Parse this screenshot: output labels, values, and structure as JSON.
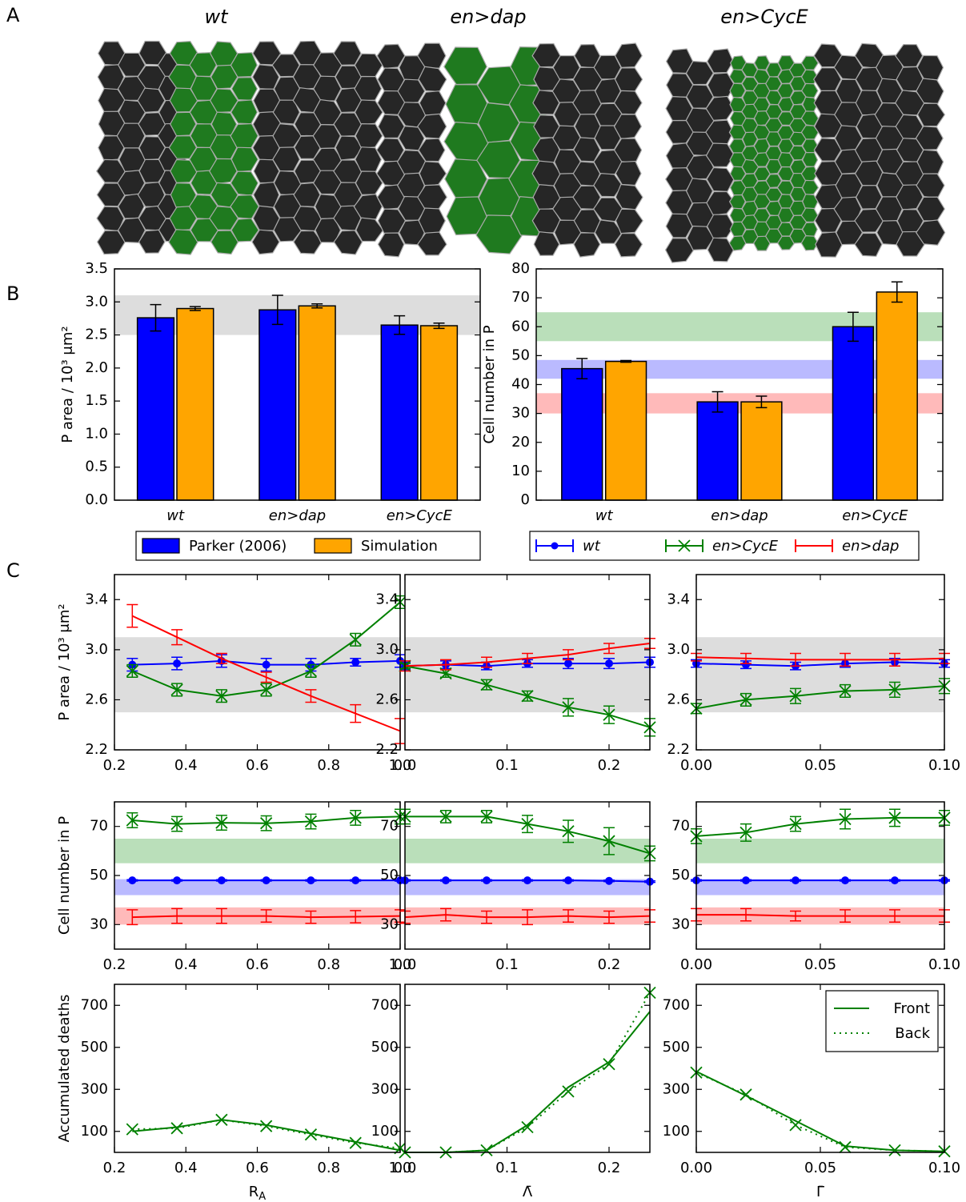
{
  "panel_labels": [
    "A",
    "B",
    "C"
  ],
  "tissue_titles": [
    "wt",
    "en>dap",
    "en>CycE"
  ],
  "chart_data": [
    {
      "type": "bar",
      "ylabel": "P area / 10³ μm²",
      "categories": [
        "wt",
        "en>dap",
        "en>CycE"
      ],
      "ylim": [
        0,
        3.5
      ],
      "yticks": [
        {
          "value": 0,
          "label": "0.0"
        },
        0.5,
        {
          "value": 1,
          "label": "1.0"
        },
        1.5,
        {
          "value": 2,
          "label": "2.0"
        },
        2.5,
        {
          "value": 3,
          "label": "3.0"
        },
        3.5
      ],
      "bands": [
        {
          "range": [
            2.5,
            3.1
          ],
          "color": "#d9d9d9"
        }
      ],
      "series": [
        {
          "name": "Parker (2006)",
          "color": "#0000ff",
          "values": [
            2.76,
            2.88,
            2.65
          ],
          "errors": [
            0.2,
            0.22,
            0.14
          ]
        },
        {
          "name": "Simulation",
          "color": "#ffa500",
          "values": [
            2.9,
            2.94,
            2.64
          ],
          "errors": [
            0.03,
            0.03,
            0.04
          ]
        }
      ]
    },
    {
      "type": "bar",
      "ylabel": "Cell number in P",
      "categories": [
        "wt",
        "en>dap",
        "en>CycE"
      ],
      "ylim": [
        0,
        80
      ],
      "yticks": [
        0,
        10,
        20,
        30,
        40,
        50,
        60,
        70,
        80
      ],
      "bands": [
        {
          "range": [
            55,
            65
          ],
          "color": "#b3dcb3"
        },
        {
          "range": [
            42,
            48.5
          ],
          "color": "#b3b3ff"
        },
        {
          "range": [
            30,
            37
          ],
          "color": "#ffb3b3"
        }
      ],
      "series": [
        {
          "color": "#0000ff",
          "values": [
            45.5,
            34,
            60
          ],
          "errors": [
            3.5,
            3.5,
            5
          ]
        },
        {
          "color": "#ffa500",
          "values": [
            48,
            34,
            72
          ],
          "errors": [
            0.3,
            2,
            3.5
          ]
        }
      ]
    },
    {
      "type": "line",
      "ylabel": "P area / 10³ μm²",
      "x": [
        0.25,
        0.375,
        0.5,
        0.625,
        0.75,
        0.875,
        1.0
      ],
      "xlim": [
        0.2,
        1.0
      ],
      "xticks": [
        0.2,
        0.4,
        0.6,
        0.8,
        {
          "value": 1,
          "label": "1.0"
        }
      ],
      "ylim": [
        2.2,
        3.6
      ],
      "yticks": [
        2.2,
        2.6,
        {
          "value": 3,
          "label": "3.0"
        },
        3.4
      ],
      "bands": [
        {
          "range": [
            2.5,
            3.1
          ],
          "color": "#d9d9d9"
        }
      ],
      "series": [
        {
          "name": "wt",
          "color": "#0000ff",
          "marker": "o",
          "values": [
            2.88,
            2.89,
            2.91,
            2.88,
            2.88,
            2.9,
            2.91
          ],
          "errors": [
            0.05,
            0.05,
            0.05,
            0.05,
            0.05,
            0.03,
            0.05
          ]
        },
        {
          "name": "en>CycE",
          "color": "#008000",
          "marker": "x",
          "values": [
            2.83,
            2.68,
            2.63,
            2.68,
            2.83,
            3.08,
            3.38
          ],
          "errors": [
            0.05,
            0.05,
            0.05,
            0.05,
            0.05,
            0.05,
            0.05
          ]
        },
        {
          "name": "en>dap",
          "color": "#ff0000",
          "values": [
            3.27,
            3.1,
            2.93,
            2.78,
            2.63,
            2.49,
            2.35
          ],
          "errors": [
            0.09,
            0.06,
            0.04,
            0.04,
            0.05,
            0.07,
            0.1
          ]
        }
      ]
    },
    {
      "type": "line",
      "x": [
        0,
        0.04,
        0.08,
        0.12,
        0.16,
        0.2,
        0.24
      ],
      "xlim": [
        0,
        0.24
      ],
      "xticks": [
        {
          "value": 0,
          "label": "0.0"
        },
        0.1,
        0.2
      ],
      "ylim": [
        2.2,
        3.6
      ],
      "yticks": [
        2.2,
        2.6,
        {
          "value": 3,
          "label": "3.0"
        },
        3.4
      ],
      "bands": [
        {
          "range": [
            2.5,
            3.1
          ],
          "color": "#d9d9d9"
        }
      ],
      "series": [
        {
          "color": "#0000ff",
          "marker": "o",
          "values": [
            2.87,
            2.88,
            2.87,
            2.89,
            2.89,
            2.89,
            2.9
          ],
          "errors": [
            0.03,
            0.03,
            0.03,
            0.03,
            0.04,
            0.04,
            0.04
          ]
        },
        {
          "color": "#008000",
          "marker": "x",
          "values": [
            2.87,
            2.81,
            2.72,
            2.63,
            2.54,
            2.48,
            2.38
          ],
          "errors": [
            0.02,
            0.03,
            0.04,
            0.04,
            0.07,
            0.07,
            0.07
          ]
        },
        {
          "color": "#ff0000",
          "values": [
            2.87,
            2.88,
            2.9,
            2.93,
            2.96,
            3.01,
            3.05
          ],
          "errors": [
            0.04,
            0.04,
            0.04,
            0.04,
            0.04,
            0.04,
            0.04
          ]
        }
      ]
    },
    {
      "type": "line",
      "x": [
        0,
        0.02,
        0.04,
        0.06,
        0.08,
        0.1
      ],
      "xlim": [
        0,
        0.1
      ],
      "xticks": [
        {
          "value": 0,
          "label": "0.00"
        },
        0.05,
        {
          "value": 0.1,
          "label": "0.10"
        }
      ],
      "ylim": [
        2.2,
        3.6
      ],
      "yticks": [
        2.2,
        2.6,
        {
          "value": 3,
          "label": "3.0"
        },
        3.4
      ],
      "bands": [
        {
          "range": [
            2.5,
            3.1
          ],
          "color": "#d9d9d9"
        }
      ],
      "series": [
        {
          "color": "#0000ff",
          "marker": "o",
          "values": [
            2.89,
            2.88,
            2.87,
            2.89,
            2.9,
            2.89
          ],
          "errors": [
            0.03,
            0.03,
            0.03,
            0.03,
            0.03,
            0.03
          ]
        },
        {
          "color": "#008000",
          "marker": "x",
          "values": [
            2.53,
            2.6,
            2.63,
            2.67,
            2.68,
            2.71
          ],
          "errors": [
            0.04,
            0.05,
            0.06,
            0.05,
            0.06,
            0.06
          ]
        },
        {
          "color": "#ff0000",
          "values": [
            2.94,
            2.93,
            2.92,
            2.92,
            2.92,
            2.93
          ],
          "errors": [
            0.03,
            0.04,
            0.05,
            0.05,
            0.05,
            0.04
          ]
        }
      ]
    },
    {
      "type": "line",
      "ylabel": "Cell number in P",
      "x": [
        0.25,
        0.375,
        0.5,
        0.625,
        0.75,
        0.875,
        1.0
      ],
      "xlim": [
        0.2,
        1.0
      ],
      "xticks": [
        0.2,
        0.4,
        0.6,
        0.8,
        {
          "value": 1,
          "label": "1.0"
        }
      ],
      "ylim": [
        20,
        80
      ],
      "yticks": [
        30,
        50,
        70
      ],
      "bands": [
        {
          "range": [
            55,
            65
          ],
          "color": "#b3dcb3"
        },
        {
          "range": [
            42,
            48.5
          ],
          "color": "#b3b3ff"
        },
        {
          "range": [
            30,
            37
          ],
          "color": "#ffb3b3"
        }
      ],
      "series": [
        {
          "color": "#0000ff",
          "marker": "o",
          "values": [
            48,
            48,
            48,
            48,
            48,
            48,
            48
          ],
          "errors": [
            0.3,
            0.3,
            0.3,
            0.3,
            0.3,
            0.3,
            0.3
          ]
        },
        {
          "color": "#008000",
          "marker": "x",
          "values": [
            72.5,
            71,
            71.5,
            71.3,
            72,
            73.5,
            74
          ],
          "errors": [
            3,
            3,
            3,
            3,
            3,
            3,
            3
          ]
        },
        {
          "color": "#ff0000",
          "values": [
            33,
            33.5,
            33.5,
            33.5,
            33,
            33.2,
            33.5
          ],
          "errors": [
            3,
            3,
            3,
            2.5,
            2.5,
            2.5,
            2.5
          ]
        }
      ]
    },
    {
      "type": "line",
      "x": [
        0,
        0.04,
        0.08,
        0.12,
        0.16,
        0.2,
        0.24
      ],
      "xlim": [
        0,
        0.24
      ],
      "xticks": [
        {
          "value": 0,
          "label": "0.0"
        },
        0.1,
        0.2
      ],
      "ylim": [
        20,
        80
      ],
      "yticks": [
        30,
        50,
        70
      ],
      "bands": [
        {
          "range": [
            55,
            65
          ],
          "color": "#b3dcb3"
        },
        {
          "range": [
            42,
            48.5
          ],
          "color": "#b3b3ff"
        },
        {
          "range": [
            30,
            37
          ],
          "color": "#ffb3b3"
        }
      ],
      "series": [
        {
          "color": "#0000ff",
          "marker": "o",
          "values": [
            48,
            48,
            48,
            48,
            48,
            47.8,
            47.5
          ],
          "errors": [
            0.3,
            0.3,
            0.3,
            0.3,
            0.3,
            0.3,
            0.3
          ]
        },
        {
          "color": "#008000",
          "marker": "x",
          "values": [
            74,
            74,
            74,
            71,
            68,
            64,
            59
          ],
          "errors": [
            3,
            2.5,
            2.5,
            3.5,
            4.5,
            5.5,
            3
          ]
        },
        {
          "color": "#ff0000",
          "values": [
            33,
            34,
            33,
            33,
            33.5,
            33,
            33.5
          ],
          "errors": [
            2.5,
            2.5,
            2.5,
            3,
            2.5,
            2.5,
            2.5
          ]
        }
      ]
    },
    {
      "type": "line",
      "x": [
        0,
        0.02,
        0.04,
        0.06,
        0.08,
        0.1
      ],
      "xlim": [
        0,
        0.1
      ],
      "xticks": [
        {
          "value": 0,
          "label": "0.00"
        },
        0.05,
        {
          "value": 0.1,
          "label": "0.10"
        }
      ],
      "ylim": [
        20,
        80
      ],
      "yticks": [
        30,
        50,
        70
      ],
      "bands": [
        {
          "range": [
            55,
            65
          ],
          "color": "#b3dcb3"
        },
        {
          "range": [
            42,
            48.5
          ],
          "color": "#b3b3ff"
        },
        {
          "range": [
            30,
            37
          ],
          "color": "#ffb3b3"
        }
      ],
      "series": [
        {
          "color": "#0000ff",
          "marker": "o",
          "values": [
            48,
            48,
            48,
            48,
            48,
            48
          ],
          "errors": [
            0.3,
            0.3,
            0.3,
            0.3,
            0.3,
            0.3
          ]
        },
        {
          "color": "#008000",
          "marker": "x",
          "values": [
            66,
            67.5,
            71,
            73,
            73.5,
            73.5
          ],
          "errors": [
            3,
            3.5,
            3,
            4,
            3.5,
            3
          ]
        },
        {
          "color": "#ff0000",
          "values": [
            34,
            34,
            33.5,
            33.5,
            33.5,
            33.5
          ],
          "errors": [
            2.5,
            2.5,
            2,
            2.5,
            2.5,
            2.5
          ]
        }
      ]
    },
    {
      "type": "line",
      "ylabel": "Accumulated deaths",
      "xlabel": "R",
      "xlabel_sub": "A",
      "x": [
        0.25,
        0.375,
        0.5,
        0.625,
        0.75,
        0.875,
        1.0
      ],
      "xlim": [
        0.2,
        1.0
      ],
      "xticks": [
        0.2,
        0.4,
        0.6,
        0.8,
        {
          "value": 1,
          "label": "1.0"
        }
      ],
      "ylim": [
        0,
        800
      ],
      "yticks": [
        100,
        300,
        500,
        700
      ],
      "series": [
        {
          "color": "#008000",
          "values": [
            100,
            120,
            155,
            130,
            90,
            50,
            10
          ]
        },
        {
          "color": "#008000",
          "marker": "x",
          "linestyle": "dotted",
          "values": [
            110,
            115,
            155,
            125,
            85,
            45,
            20
          ]
        }
      ]
    },
    {
      "type": "line",
      "xlabel": "Λ̄",
      "x": [
        0,
        0.04,
        0.08,
        0.12,
        0.16,
        0.2,
        0.24
      ],
      "xlim": [
        0,
        0.24
      ],
      "xticks": [
        {
          "value": 0,
          "label": "0.0"
        },
        0.1,
        0.2
      ],
      "ylim": [
        0,
        800
      ],
      "yticks": [
        100,
        300,
        500,
        700
      ],
      "series": [
        {
          "color": "#008000",
          "values": [
            0,
            0,
            10,
            130,
            310,
            430,
            670
          ]
        },
        {
          "color": "#008000",
          "marker": "x",
          "linestyle": "dotted",
          "values": [
            0,
            0,
            10,
            120,
            290,
            420,
            760
          ]
        }
      ]
    },
    {
      "type": "line",
      "xlabel": "Γ̄",
      "legend": "upper right",
      "x": [
        0,
        0.02,
        0.04,
        0.06,
        0.08,
        0.1
      ],
      "xlim": [
        0,
        0.1
      ],
      "xticks": [
        {
          "value": 0,
          "label": "0.00"
        },
        0.05,
        {
          "value": 0.1,
          "label": "0.10"
        }
      ],
      "ylim": [
        0,
        800
      ],
      "yticks": [
        100,
        300,
        500,
        700
      ],
      "series": [
        {
          "name": "Front",
          "color": "#008000",
          "values": [
            385,
            270,
            150,
            30,
            10,
            5
          ]
        },
        {
          "name": "Back",
          "color": "#008000",
          "marker": "x",
          "linestyle": "dotted",
          "values": [
            380,
            275,
            130,
            25,
            10,
            5
          ]
        }
      ]
    }
  ]
}
